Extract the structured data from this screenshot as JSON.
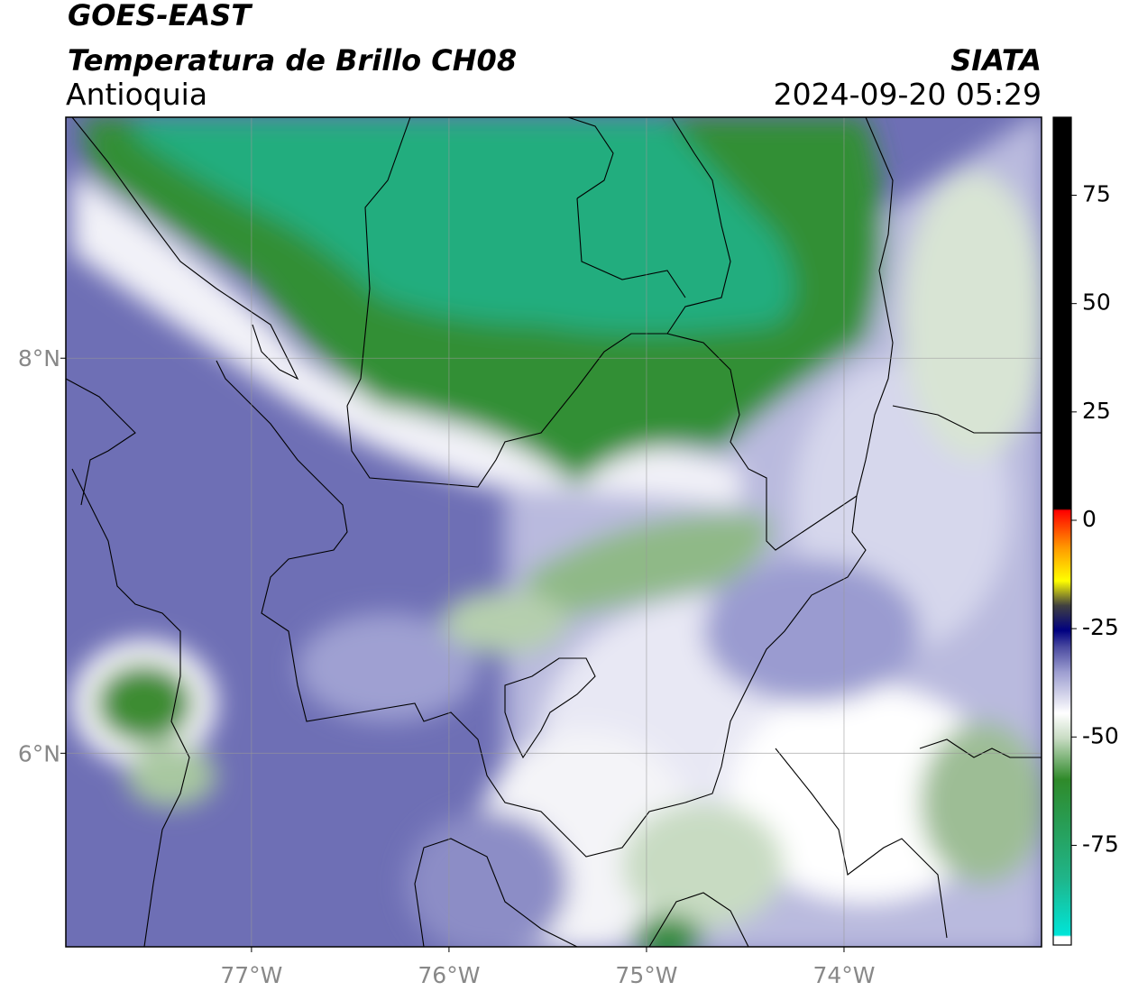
{
  "chart_data": {
    "type": "map",
    "title": "GOES-EAST",
    "subtitle": "Temperatura de Brillo CH08",
    "region": "Antioquia",
    "source": "SIATA",
    "timestamp": "2024-09-20 05:29",
    "xlim": [
      -77.94,
      -73.0
    ],
    "ylim": [
      5.02,
      9.22
    ],
    "xticks": [
      {
        "value": -77,
        "label": "77°W"
      },
      {
        "value": -76,
        "label": "76°W"
      },
      {
        "value": -75,
        "label": "75°W"
      },
      {
        "value": -74,
        "label": "74°W"
      }
    ],
    "yticks": [
      {
        "value": 6,
        "label": "6°N"
      },
      {
        "value": 8,
        "label": "8°N"
      }
    ],
    "grid": true,
    "colorbar": {
      "lim": [
        -98,
        93
      ],
      "ticks": [
        75,
        50,
        25,
        0,
        -25,
        -50,
        -75
      ]
    }
  }
}
